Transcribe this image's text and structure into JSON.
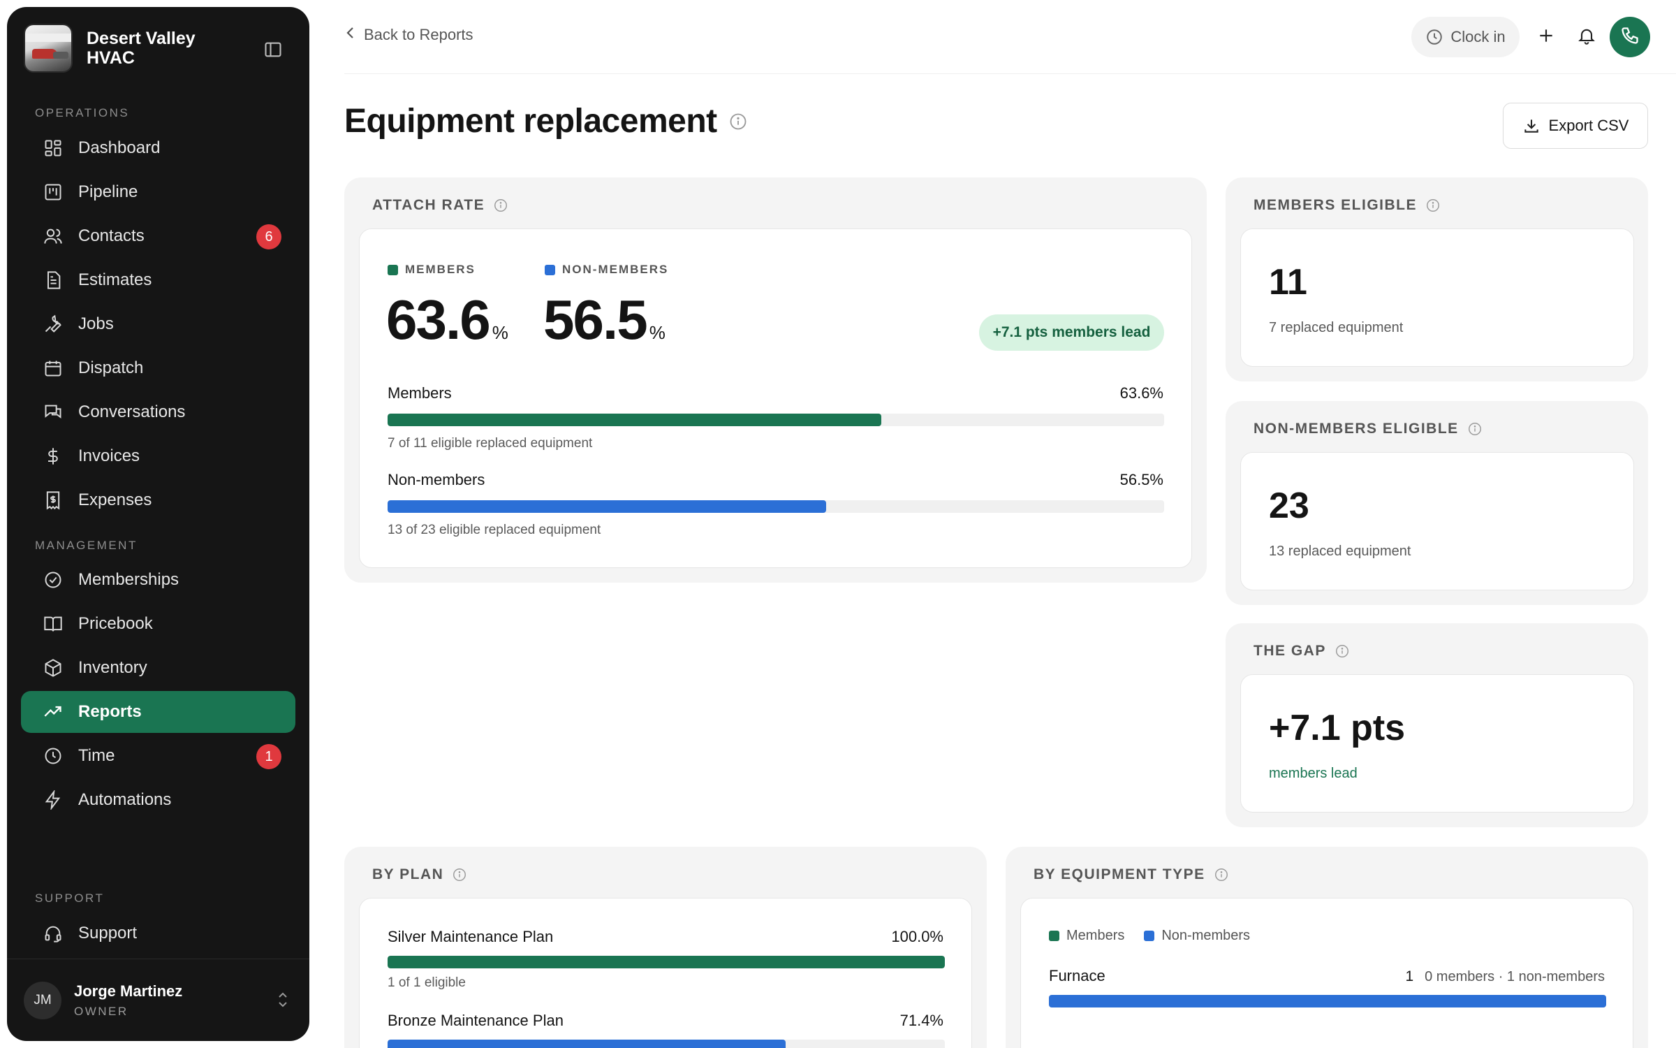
{
  "brand": {
    "name": "Desert Valley HVAC"
  },
  "sidebar": {
    "operations_label": "OPERATIONS",
    "management_label": "MANAGEMENT",
    "support_label": "SUPPORT",
    "operations": [
      {
        "label": "Dashboard",
        "icon": "dashboard-icon"
      },
      {
        "label": "Pipeline",
        "icon": "pipeline-icon"
      },
      {
        "label": "Contacts",
        "icon": "contacts-icon",
        "badge": "6"
      },
      {
        "label": "Estimates",
        "icon": "estimates-icon"
      },
      {
        "label": "Jobs",
        "icon": "wrench-icon"
      },
      {
        "label": "Dispatch",
        "icon": "calendar-icon"
      },
      {
        "label": "Conversations",
        "icon": "chat-icon"
      },
      {
        "label": "Invoices",
        "icon": "dollar-icon"
      },
      {
        "label": "Expenses",
        "icon": "receipt-icon"
      }
    ],
    "management": [
      {
        "label": "Memberships",
        "icon": "check-circle-icon"
      },
      {
        "label": "Pricebook",
        "icon": "book-icon"
      },
      {
        "label": "Inventory",
        "icon": "box-icon"
      },
      {
        "label": "Reports",
        "icon": "trending-icon",
        "active": true
      },
      {
        "label": "Time",
        "icon": "clock-icon",
        "badge": "1"
      },
      {
        "label": "Automations",
        "icon": "bolt-icon"
      }
    ],
    "support": [
      {
        "label": "Support",
        "icon": "headset-icon"
      }
    ],
    "user": {
      "initials": "JM",
      "name": "Jorge Martinez",
      "role": "OWNER"
    }
  },
  "topbar": {
    "back_label": "Back to Reports",
    "clock_label": "Clock in"
  },
  "page": {
    "title": "Equipment replacement",
    "export_label": "Export CSV"
  },
  "colors": {
    "members": "#1a7552",
    "non_members": "#2b6fd6",
    "badge": "#e0393e"
  },
  "attach_rate": {
    "label": "ATTACH RATE",
    "members_label": "MEMBERS",
    "non_members_label": "NON-MEMBERS",
    "members_value": "63.6",
    "non_members_value": "56.5",
    "pct_sign": "%",
    "lead_pill": "+7.1 pts members lead",
    "rows": [
      {
        "label": "Members",
        "value": "63.6%",
        "fraction": 0.636,
        "caption": "7 of 11 eligible replaced equipment"
      },
      {
        "label": "Non-members",
        "value": "56.5%",
        "fraction": 0.565,
        "caption": "13 of 23 eligible replaced equipment"
      }
    ]
  },
  "members_eligible": {
    "label": "MEMBERS ELIGIBLE",
    "value": "11",
    "sub": "7 replaced equipment"
  },
  "non_members_eligible": {
    "label": "NON-MEMBERS ELIGIBLE",
    "value": "23",
    "sub": "13 replaced equipment"
  },
  "gap": {
    "label": "THE GAP",
    "value": "+7.1 pts",
    "sub": "members lead"
  },
  "by_plan": {
    "label": "BY PLAN",
    "rows": [
      {
        "label": "Silver Maintenance Plan",
        "value": "100.0%",
        "fraction": 1.0,
        "caption": "1 of 1 eligible"
      },
      {
        "label": "Bronze Maintenance Plan",
        "value": "71.4%",
        "fraction": 0.714
      }
    ]
  },
  "by_equipment": {
    "label": "BY EQUIPMENT TYPE",
    "legend_members": "Members",
    "legend_non_members": "Non-members",
    "rows": [
      {
        "label": "Furnace",
        "count": "1",
        "detail": "0 members · 1 non-members",
        "members_fraction": 0,
        "non_members_fraction": 1
      }
    ]
  }
}
